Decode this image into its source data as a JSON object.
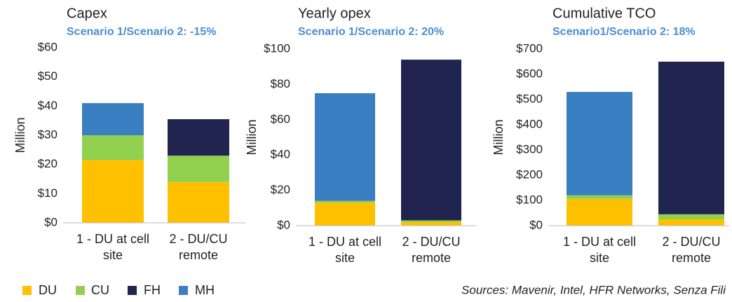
{
  "chart_data": [
    {
      "type": "bar",
      "stacked": true,
      "title": "Capex",
      "subtitle": "Scenario 1/Scenario 2: -15%",
      "ylabel": "Million",
      "categories": [
        "1 - DU at cell site",
        "2 - DU/CU remote"
      ],
      "series": [
        {
          "name": "DU",
          "color": "#ffc000",
          "values": [
            21.5,
            14
          ]
        },
        {
          "name": "CU",
          "color": "#92d050",
          "values": [
            8.5,
            9
          ]
        },
        {
          "name": "FH",
          "color": "#20244f",
          "values": [
            0,
            12.5
          ]
        },
        {
          "name": "MH",
          "color": "#3a7fc1",
          "values": [
            11,
            0
          ]
        }
      ],
      "ylim": [
        0,
        60
      ],
      "yticks": [
        {
          "value": 0,
          "label": "$0"
        },
        {
          "value": 10,
          "label": "$10"
        },
        {
          "value": 20,
          "label": "$20"
        },
        {
          "value": 30,
          "label": "$30"
        },
        {
          "value": 40,
          "label": "$40"
        },
        {
          "value": 50,
          "label": "$50"
        },
        {
          "value": 60,
          "label": "$60"
        }
      ]
    },
    {
      "type": "bar",
      "stacked": true,
      "title": "Yearly opex",
      "subtitle": "Scenario 1/Scenario 2: 20%",
      "ylabel": "Million",
      "categories": [
        "1 - DU at cell site",
        "2 - DU/CU remote"
      ],
      "series": [
        {
          "name": "DU",
          "color": "#ffc000",
          "values": [
            13,
            2
          ]
        },
        {
          "name": "CU",
          "color": "#92d050",
          "values": [
            1,
            1
          ]
        },
        {
          "name": "FH",
          "color": "#20244f",
          "values": [
            0,
            91
          ]
        },
        {
          "name": "MH",
          "color": "#3a7fc1",
          "values": [
            61,
            0
          ]
        }
      ],
      "ylim": [
        0,
        100
      ],
      "yticks": [
        {
          "value": 0,
          "label": "$0"
        },
        {
          "value": 20,
          "label": "$20"
        },
        {
          "value": 40,
          "label": "$40"
        },
        {
          "value": 60,
          "label": "$60"
        },
        {
          "value": 80,
          "label": "$80"
        },
        {
          "value": 100,
          "label": "$100"
        }
      ]
    },
    {
      "type": "bar",
      "stacked": true,
      "title": "Cumulative TCO",
      "subtitle": "Scenario1/Scenario 2: 18%",
      "ylabel": "Million",
      "categories": [
        "1 - DU at cell site",
        "2 - DU/CU remote"
      ],
      "series": [
        {
          "name": "DU",
          "color": "#ffc000",
          "values": [
            105,
            25
          ]
        },
        {
          "name": "CU",
          "color": "#92d050",
          "values": [
            15,
            20
          ]
        },
        {
          "name": "FH",
          "color": "#20244f",
          "values": [
            0,
            605
          ]
        },
        {
          "name": "MH",
          "color": "#3a7fc1",
          "values": [
            410,
            0
          ]
        }
      ],
      "ylim": [
        0,
        700
      ],
      "yticks": [
        {
          "value": 0,
          "label": "$0"
        },
        {
          "value": 100,
          "label": "$100"
        },
        {
          "value": 200,
          "label": "$200"
        },
        {
          "value": 300,
          "label": "$300"
        },
        {
          "value": 400,
          "label": "$400"
        },
        {
          "value": 500,
          "label": "$500"
        },
        {
          "value": 600,
          "label": "$600"
        },
        {
          "value": 700,
          "label": "$700"
        }
      ]
    }
  ],
  "source": "Sources: Mavenir, Intel, HFR Networks, Senza Fili"
}
